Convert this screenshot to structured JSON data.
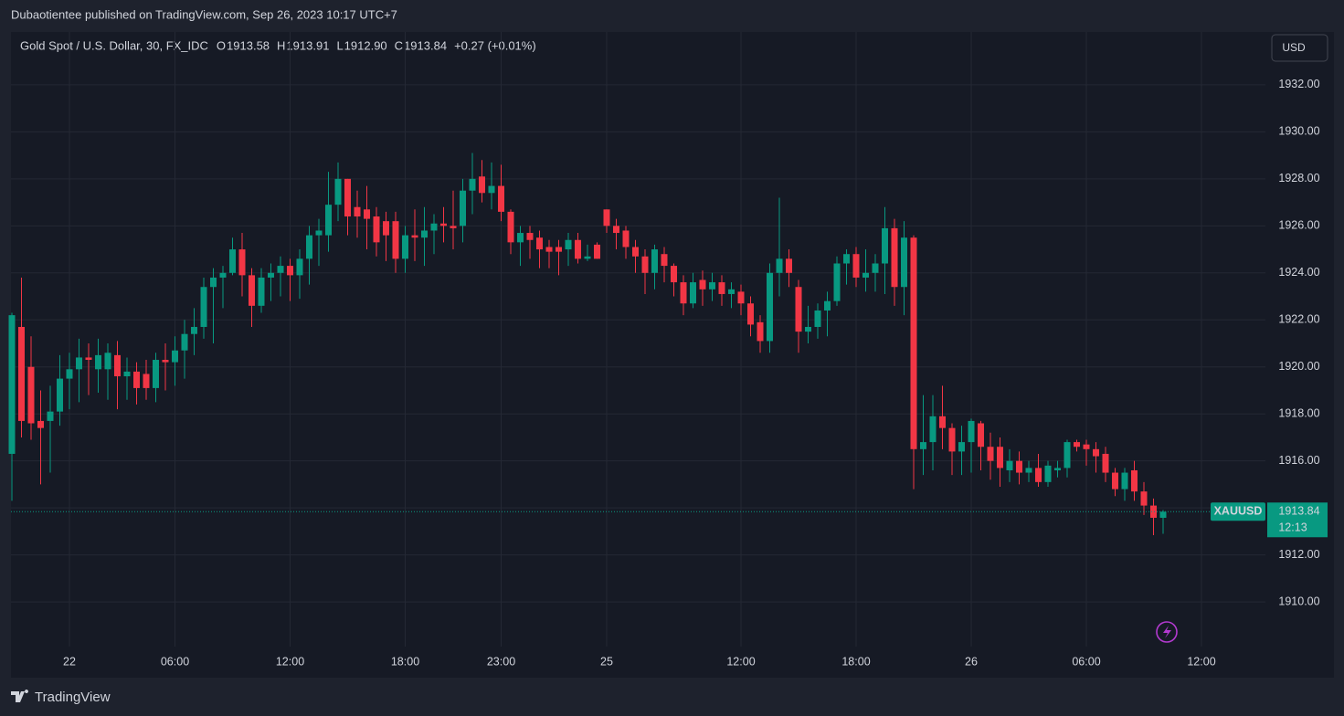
{
  "header": {
    "publisher": "Dubaotientee published on TradingView.com, Sep 26, 2023 10:17 UTC+7",
    "symbol": "Gold Spot / U.S. Dollar, 30, FX_IDC",
    "ohlc": [
      {
        "label": "O",
        "value": "1913.58"
      },
      {
        "label": "H",
        "value": "1913.91"
      },
      {
        "label": "L",
        "value": "1912.90"
      },
      {
        "label": "C",
        "value": "1913.84"
      }
    ],
    "change": "+0.27 (+0.01%)"
  },
  "currency": "USD",
  "footer": {
    "brand": "TradingView"
  },
  "chart_data": {
    "type": "candlestick",
    "up_color": "#089981",
    "down_color": "#f23645",
    "grid": true,
    "ylim": [
      1908.1,
      1934.25
    ],
    "yticks": [
      {
        "value": 1910,
        "label": "1910.00"
      },
      {
        "value": 1912,
        "label": "1912.00"
      },
      {
        "value": 1914,
        "label": "1914.00"
      },
      {
        "value": 1916,
        "label": "1916.00"
      },
      {
        "value": 1918,
        "label": "1918.00"
      },
      {
        "value": 1920,
        "label": "1920.00"
      },
      {
        "value": 1922,
        "label": "1922.00"
      },
      {
        "value": 1924,
        "label": "1924.00"
      },
      {
        "value": 1926,
        "label": "1926.00"
      },
      {
        "value": 1928,
        "label": "1928.00"
      },
      {
        "value": 1930,
        "label": "1930.00"
      },
      {
        "value": 1932,
        "label": "1932.00"
      }
    ],
    "categories": [
      null,
      null,
      null,
      null,
      null,
      null,
      "22",
      null,
      null,
      null,
      null,
      null,
      null,
      null,
      null,
      null,
      null,
      "06:00",
      null,
      null,
      null,
      null,
      null,
      null,
      null,
      null,
      null,
      null,
      null,
      "12:00",
      null,
      null,
      null,
      null,
      null,
      null,
      null,
      null,
      null,
      null,
      null,
      "18:00",
      null,
      null,
      null,
      null,
      null,
      null,
      null,
      null,
      null,
      "23:00",
      null,
      null,
      null,
      null,
      null,
      null,
      null,
      null,
      null,
      null,
      "25",
      null,
      null,
      null,
      null,
      null,
      null,
      null,
      null,
      null,
      null,
      null,
      null,
      null,
      "12:00",
      null,
      null,
      null,
      null,
      null,
      null,
      null,
      null,
      null,
      null,
      null,
      "18:00",
      null,
      null,
      null,
      null,
      null,
      null,
      null,
      null,
      null,
      null,
      null,
      "26",
      null,
      null,
      null,
      null,
      null,
      null,
      null,
      null,
      null,
      null,
      null,
      "06:00",
      null,
      null,
      null,
      null,
      null,
      null,
      null,
      null,
      null,
      null,
      null,
      "12:00"
    ],
    "open": [
      1916.3,
      1921.7,
      1920.0,
      1917.7,
      1917.7,
      1918.1,
      1919.5,
      1919.9,
      1920.4,
      1919.9,
      1919.9,
      1920.5,
      1919.6,
      1919.8,
      1919.7,
      1919.1,
      1920.3,
      1920.2,
      1920.7,
      1921.4,
      1921.7,
      1923.4,
      1923.8,
      1924.0,
      1925.0,
      1923.9,
      1922.6,
      1923.8,
      1924.0,
      1924.3,
      1923.9,
      1924.6,
      1925.6,
      1925.6,
      1926.9,
      1928.0,
      1926.8,
      1926.7,
      1926.4,
      1926.2,
      1926.2,
      1924.6,
      1925.6,
      1925.5,
      1925.8,
      1926.1,
      1926.0,
      1926.0,
      1927.5,
      1928.1,
      1927.4,
      1927.7,
      1926.6,
      1925.3,
      1925.7,
      1925.5,
      1925.1,
      1925.1,
      1925.0,
      1925.4,
      1924.6,
      1925.2,
      1926.7,
      1926.0,
      1925.8,
      1925.1,
      1924.7,
      1924.0,
      1924.8,
      1924.3,
      1923.6,
      1922.7,
      1923.7,
      1923.3,
      1923.6,
      1923.1,
      1923.2,
      1922.7,
      1921.9,
      1921.1,
      1924.0,
      1924.6,
      1923.4,
      1921.5,
      1921.7,
      1922.4,
      1922.8,
      1924.4,
      1924.8,
      1923.8,
      1924.0,
      1924.4,
      1925.9,
      1923.4,
      1925.5,
      1916.5,
      1916.8,
      1917.9,
      1917.4,
      1916.4,
      1916.8,
      1917.6,
      1916.6,
      1916.6,
      1915.6,
      1916.0,
      1915.5,
      1915.7,
      1915.1,
      1915.6,
      1915.7,
      1916.8,
      1916.7,
      1916.5,
      1916.3,
      1915.5,
      1914.8,
      1915.6,
      1914.7,
      1914.1,
      1913.58,
      null,
      null,
      null,
      null
    ],
    "high": [
      1922.3,
      1923.8,
      1921.3,
      1919.0,
      1919.2,
      1920.5,
      1920.6,
      1921.2,
      1921.0,
      1921.2,
      1921.0,
      1921.1,
      1920.4,
      1920.2,
      1920.3,
      1920.6,
      1921.0,
      1921.3,
      1922.0,
      1922.5,
      1923.8,
      1924.2,
      1924.3,
      1925.5,
      1925.7,
      1924.2,
      1924.2,
      1924.4,
      1924.7,
      1924.6,
      1925.0,
      1926.0,
      1926.3,
      1928.3,
      1928.7,
      1928.0,
      1927.5,
      1927.7,
      1926.8,
      1926.6,
      1926.6,
      1926.0,
      1926.7,
      1926.8,
      1926.5,
      1926.8,
      1927.5,
      1928.0,
      1929.1,
      1928.8,
      1928.7,
      1928.6,
      1926.7,
      1926.0,
      1926.0,
      1925.8,
      1925.4,
      1925.4,
      1925.7,
      1925.7,
      1925.2,
      1925.3,
      1926.7,
      1926.3,
      1926.0,
      1925.4,
      1925.0,
      1925.2,
      1925.1,
      1924.4,
      1923.9,
      1924.0,
      1924.1,
      1924.0,
      1923.9,
      1923.6,
      1923.5,
      1923.0,
      1922.2,
      1924.4,
      1927.2,
      1925.0,
      1923.7,
      1922.6,
      1922.7,
      1923.2,
      1924.7,
      1925.0,
      1925.1,
      1925.0,
      1924.8,
      1926.8,
      1926.3,
      1926.2,
      1925.6,
      1918.8,
      1918.8,
      1919.2,
      1917.6,
      1917.5,
      1917.8,
      1917.7,
      1917.2,
      1917.0,
      1916.5,
      1916.4,
      1916.0,
      1916.3,
      1916.0,
      1916.0,
      1916.9,
      1916.9,
      1916.9,
      1916.8,
      1916.6,
      1915.7,
      1915.7,
      1916.0,
      1915.1,
      1914.4,
      1913.91,
      null,
      null,
      null,
      null
    ],
    "low": [
      1914.3,
      1917.0,
      1916.9,
      1915.0,
      1915.5,
      1917.5,
      1918.2,
      1918.5,
      1918.8,
      1918.9,
      1918.6,
      1918.2,
      1918.6,
      1918.4,
      1918.6,
      1918.5,
      1919.0,
      1919.2,
      1919.5,
      1920.5,
      1921.2,
      1921.0,
      1922.5,
      1923.9,
      1923.0,
      1921.7,
      1922.3,
      1922.8,
      1923.0,
      1922.8,
      1922.9,
      1923.5,
      1924.3,
      1924.9,
      1926.2,
      1925.6,
      1925.5,
      1925.0,
      1924.7,
      1924.5,
      1924.0,
      1924.0,
      1924.5,
      1924.3,
      1924.8,
      1925.3,
      1925.0,
      1925.3,
      1926.5,
      1927.0,
      1926.7,
      1926.2,
      1924.8,
      1924.3,
      1924.6,
      1924.2,
      1924.2,
      1923.9,
      1924.3,
      1924.4,
      1924.5,
      1924.6,
      1925.7,
      1925.0,
      1924.6,
      1924.0,
      1923.1,
      1923.3,
      1923.6,
      1923.0,
      1922.2,
      1922.5,
      1922.6,
      1922.8,
      1922.6,
      1922.5,
      1922.2,
      1921.3,
      1920.6,
      1920.6,
      1923.0,
      1923.4,
      1920.6,
      1921.0,
      1921.2,
      1921.3,
      1922.6,
      1923.5,
      1923.4,
      1923.2,
      1923.2,
      1923.1,
      1922.6,
      1922.2,
      1914.8,
      1915.4,
      1915.6,
      1916.5,
      1915.4,
      1915.4,
      1915.5,
      1915.6,
      1915.2,
      1914.9,
      1915.1,
      1915.0,
      1915.1,
      1914.9,
      1914.9,
      1915.3,
      1915.3,
      1916.4,
      1915.8,
      1915.5,
      1915.1,
      1914.5,
      1914.3,
      1914.3,
      1913.7,
      1912.84,
      1912.9,
      null,
      null,
      null,
      null
    ],
    "close": [
      1922.2,
      1917.7,
      1917.6,
      1917.4,
      1918.1,
      1919.5,
      1919.9,
      1920.4,
      1920.3,
      1920.5,
      1920.6,
      1919.6,
      1919.8,
      1919.1,
      1919.1,
      1920.3,
      1920.2,
      1920.7,
      1921.4,
      1921.7,
      1923.4,
      1923.8,
      1924.0,
      1925.0,
      1923.9,
      1922.6,
      1923.8,
      1924.0,
      1924.3,
      1923.9,
      1924.6,
      1925.6,
      1925.8,
      1926.9,
      1928.0,
      1926.4,
      1926.4,
      1926.3,
      1925.3,
      1925.6,
      1924.6,
      1925.6,
      1925.5,
      1925.8,
      1926.1,
      1926.0,
      1925.9,
      1927.5,
      1928.0,
      1927.4,
      1927.7,
      1926.6,
      1925.3,
      1925.7,
      1925.4,
      1925.0,
      1924.9,
      1924.9,
      1925.4,
      1924.6,
      1924.7,
      1924.6,
      1926.0,
      1925.7,
      1925.1,
      1924.7,
      1924.0,
      1925.0,
      1924.3,
      1923.6,
      1922.7,
      1923.6,
      1923.3,
      1923.6,
      1923.1,
      1923.3,
      1922.7,
      1921.8,
      1921.1,
      1924.0,
      1924.6,
      1924.0,
      1921.5,
      1921.7,
      1922.4,
      1922.8,
      1924.4,
      1924.8,
      1923.8,
      1924.0,
      1924.4,
      1925.9,
      1923.4,
      1925.5,
      1916.5,
      1916.8,
      1917.9,
      1917.4,
      1916.4,
      1916.8,
      1917.7,
      1916.6,
      1916.0,
      1915.7,
      1916.0,
      1915.5,
      1915.7,
      1915.1,
      1915.8,
      1915.7,
      1916.8,
      1916.6,
      1916.5,
      1916.2,
      1915.5,
      1914.8,
      1915.5,
      1914.7,
      1914.1,
      1913.58,
      1913.84,
      null,
      null,
      null,
      null
    ],
    "last_symbol": "XAUUSD",
    "countdown": "12:13"
  }
}
